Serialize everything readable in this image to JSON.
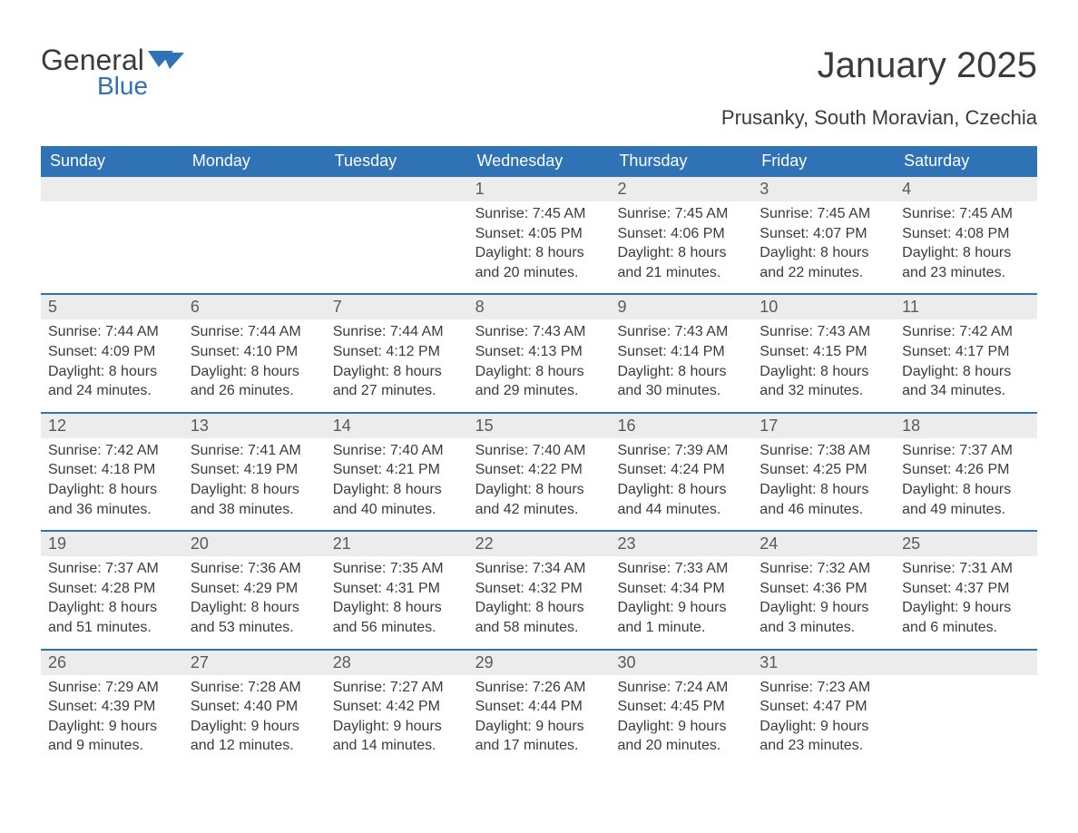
{
  "logo": {
    "text1": "General",
    "text2": "Blue",
    "text_color": "#3b3b3b",
    "accent_color": "#2f72b6"
  },
  "header": {
    "title": "January 2025",
    "subtitle": "Prusanky, South Moravian, Czechia",
    "title_fontsize": 40,
    "subtitle_fontsize": 22
  },
  "calendar": {
    "type": "table",
    "header_bg": "#2f72b6",
    "header_text_color": "#ffffff",
    "daynum_bg": "#ececec",
    "week_border_color": "#2f72b6",
    "body_text_color": "#3b3b3b",
    "columns": [
      "Sunday",
      "Monday",
      "Tuesday",
      "Wednesday",
      "Thursday",
      "Friday",
      "Saturday"
    ],
    "weeks": [
      [
        {
          "n": "",
          "rise": "",
          "set": "",
          "day": ""
        },
        {
          "n": "",
          "rise": "",
          "set": "",
          "day": ""
        },
        {
          "n": "",
          "rise": "",
          "set": "",
          "day": ""
        },
        {
          "n": "1",
          "rise": "Sunrise: 7:45 AM",
          "set": "Sunset: 4:05 PM",
          "day": "Daylight: 8 hours and 20 minutes."
        },
        {
          "n": "2",
          "rise": "Sunrise: 7:45 AM",
          "set": "Sunset: 4:06 PM",
          "day": "Daylight: 8 hours and 21 minutes."
        },
        {
          "n": "3",
          "rise": "Sunrise: 7:45 AM",
          "set": "Sunset: 4:07 PM",
          "day": "Daylight: 8 hours and 22 minutes."
        },
        {
          "n": "4",
          "rise": "Sunrise: 7:45 AM",
          "set": "Sunset: 4:08 PM",
          "day": "Daylight: 8 hours and 23 minutes."
        }
      ],
      [
        {
          "n": "5",
          "rise": "Sunrise: 7:44 AM",
          "set": "Sunset: 4:09 PM",
          "day": "Daylight: 8 hours and 24 minutes."
        },
        {
          "n": "6",
          "rise": "Sunrise: 7:44 AM",
          "set": "Sunset: 4:10 PM",
          "day": "Daylight: 8 hours and 26 minutes."
        },
        {
          "n": "7",
          "rise": "Sunrise: 7:44 AM",
          "set": "Sunset: 4:12 PM",
          "day": "Daylight: 8 hours and 27 minutes."
        },
        {
          "n": "8",
          "rise": "Sunrise: 7:43 AM",
          "set": "Sunset: 4:13 PM",
          "day": "Daylight: 8 hours and 29 minutes."
        },
        {
          "n": "9",
          "rise": "Sunrise: 7:43 AM",
          "set": "Sunset: 4:14 PM",
          "day": "Daylight: 8 hours and 30 minutes."
        },
        {
          "n": "10",
          "rise": "Sunrise: 7:43 AM",
          "set": "Sunset: 4:15 PM",
          "day": "Daylight: 8 hours and 32 minutes."
        },
        {
          "n": "11",
          "rise": "Sunrise: 7:42 AM",
          "set": "Sunset: 4:17 PM",
          "day": "Daylight: 8 hours and 34 minutes."
        }
      ],
      [
        {
          "n": "12",
          "rise": "Sunrise: 7:42 AM",
          "set": "Sunset: 4:18 PM",
          "day": "Daylight: 8 hours and 36 minutes."
        },
        {
          "n": "13",
          "rise": "Sunrise: 7:41 AM",
          "set": "Sunset: 4:19 PM",
          "day": "Daylight: 8 hours and 38 minutes."
        },
        {
          "n": "14",
          "rise": "Sunrise: 7:40 AM",
          "set": "Sunset: 4:21 PM",
          "day": "Daylight: 8 hours and 40 minutes."
        },
        {
          "n": "15",
          "rise": "Sunrise: 7:40 AM",
          "set": "Sunset: 4:22 PM",
          "day": "Daylight: 8 hours and 42 minutes."
        },
        {
          "n": "16",
          "rise": "Sunrise: 7:39 AM",
          "set": "Sunset: 4:24 PM",
          "day": "Daylight: 8 hours and 44 minutes."
        },
        {
          "n": "17",
          "rise": "Sunrise: 7:38 AM",
          "set": "Sunset: 4:25 PM",
          "day": "Daylight: 8 hours and 46 minutes."
        },
        {
          "n": "18",
          "rise": "Sunrise: 7:37 AM",
          "set": "Sunset: 4:26 PM",
          "day": "Daylight: 8 hours and 49 minutes."
        }
      ],
      [
        {
          "n": "19",
          "rise": "Sunrise: 7:37 AM",
          "set": "Sunset: 4:28 PM",
          "day": "Daylight: 8 hours and 51 minutes."
        },
        {
          "n": "20",
          "rise": "Sunrise: 7:36 AM",
          "set": "Sunset: 4:29 PM",
          "day": "Daylight: 8 hours and 53 minutes."
        },
        {
          "n": "21",
          "rise": "Sunrise: 7:35 AM",
          "set": "Sunset: 4:31 PM",
          "day": "Daylight: 8 hours and 56 minutes."
        },
        {
          "n": "22",
          "rise": "Sunrise: 7:34 AM",
          "set": "Sunset: 4:32 PM",
          "day": "Daylight: 8 hours and 58 minutes."
        },
        {
          "n": "23",
          "rise": "Sunrise: 7:33 AM",
          "set": "Sunset: 4:34 PM",
          "day": "Daylight: 9 hours and 1 minute."
        },
        {
          "n": "24",
          "rise": "Sunrise: 7:32 AM",
          "set": "Sunset: 4:36 PM",
          "day": "Daylight: 9 hours and 3 minutes."
        },
        {
          "n": "25",
          "rise": "Sunrise: 7:31 AM",
          "set": "Sunset: 4:37 PM",
          "day": "Daylight: 9 hours and 6 minutes."
        }
      ],
      [
        {
          "n": "26",
          "rise": "Sunrise: 7:29 AM",
          "set": "Sunset: 4:39 PM",
          "day": "Daylight: 9 hours and 9 minutes."
        },
        {
          "n": "27",
          "rise": "Sunrise: 7:28 AM",
          "set": "Sunset: 4:40 PM",
          "day": "Daylight: 9 hours and 12 minutes."
        },
        {
          "n": "28",
          "rise": "Sunrise: 7:27 AM",
          "set": "Sunset: 4:42 PM",
          "day": "Daylight: 9 hours and 14 minutes."
        },
        {
          "n": "29",
          "rise": "Sunrise: 7:26 AM",
          "set": "Sunset: 4:44 PM",
          "day": "Daylight: 9 hours and 17 minutes."
        },
        {
          "n": "30",
          "rise": "Sunrise: 7:24 AM",
          "set": "Sunset: 4:45 PM",
          "day": "Daylight: 9 hours and 20 minutes."
        },
        {
          "n": "31",
          "rise": "Sunrise: 7:23 AM",
          "set": "Sunset: 4:47 PM",
          "day": "Daylight: 9 hours and 23 minutes."
        },
        {
          "n": "",
          "rise": "",
          "set": "",
          "day": ""
        }
      ]
    ]
  }
}
